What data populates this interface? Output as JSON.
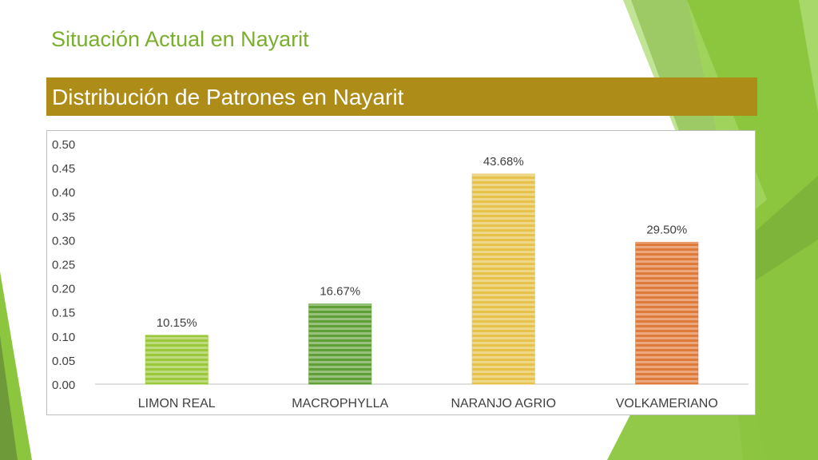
{
  "slide": {
    "title": "Situación Actual en Nayarit",
    "banner": "Distribución de Patrones en Nayarit"
  },
  "colors": {
    "title_green": "#7AAE2C",
    "banner_gold": "#AD8C17",
    "decor_greens": [
      "#8CC63F",
      "#6F9A3A",
      "#A8D86A"
    ]
  },
  "chart_data": {
    "type": "bar",
    "title": "",
    "xlabel": "",
    "ylabel": "",
    "categories": [
      "LIMON REAL",
      "MACROPHYLLA",
      "NARANJO AGRIO",
      "VOLKAMERIANO"
    ],
    "values": [
      0.1015,
      0.1667,
      0.4368,
      0.295
    ],
    "data_labels": [
      "10.15%",
      "16.67%",
      "43.68%",
      "29.50%"
    ],
    "bar_colors": [
      "#9BC83B",
      "#5FA036",
      "#E6C24A",
      "#E07A3A"
    ],
    "ylim": [
      0,
      0.5
    ],
    "yticks": [
      "0.00",
      "0.05",
      "0.10",
      "0.15",
      "0.20",
      "0.25",
      "0.30",
      "0.35",
      "0.40",
      "0.45",
      "0.50"
    ],
    "grid": false,
    "legend": "none"
  }
}
